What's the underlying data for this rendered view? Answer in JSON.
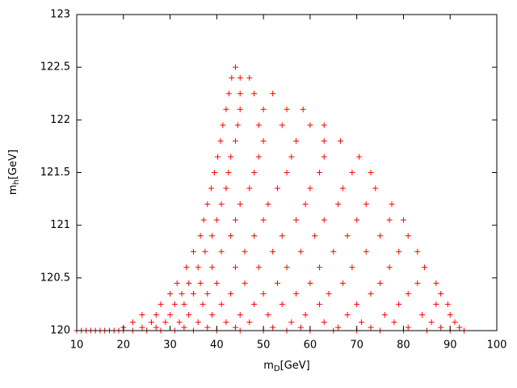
{
  "chart_data": {
    "type": "scatter",
    "color": "#ff0000",
    "x_label": [
      "m",
      "D",
      "[GeV]"
    ],
    "y_label": [
      "m",
      "h",
      "[GeV]"
    ],
    "xlim": [
      10,
      100
    ],
    "xticks": [
      10,
      20,
      30,
      40,
      50,
      60,
      70,
      80,
      90,
      100
    ],
    "ylim": [
      120,
      123
    ],
    "yticks": [
      120,
      120.5,
      121,
      121.5,
      122,
      122.5,
      123
    ],
    "x": [
      10,
      11,
      12,
      13,
      14,
      15,
      16,
      17,
      18,
      19,
      20,
      22,
      25,
      28,
      31,
      35,
      40,
      45,
      50,
      55,
      60,
      65,
      70,
      75,
      80,
      85,
      90,
      93,
      20,
      24,
      27,
      33,
      38,
      44,
      52,
      58,
      66,
      73,
      81,
      88,
      92,
      22,
      26,
      29,
      32,
      36,
      42,
      47,
      56,
      63,
      71,
      78,
      86,
      91,
      24,
      27,
      30,
      34,
      39,
      45,
      51,
      59,
      68,
      76,
      84,
      90,
      28,
      31,
      33,
      37,
      41,
      48,
      54,
      62,
      70,
      79,
      87,
      89.5,
      30,
      32.5,
      35,
      38,
      43,
      50,
      57,
      64,
      73,
      81,
      88,
      31.5,
      34,
      36.5,
      40,
      46,
      53,
      60,
      67,
      75,
      83,
      87,
      33.5,
      36,
      39,
      44,
      49,
      55,
      62,
      69,
      77,
      84.5,
      35,
      37.5,
      41,
      46,
      52,
      58,
      65,
      72,
      79,
      83,
      36.5,
      39,
      43,
      48,
      54,
      61,
      68,
      75,
      81,
      37.2,
      40,
      44,
      50,
      57,
      63,
      70,
      77,
      80,
      38,
      41,
      45,
      51,
      59,
      66,
      72,
      77.5,
      38.8,
      42,
      47,
      53,
      60,
      67,
      74,
      39.5,
      42.5,
      48,
      55,
      62,
      69,
      73,
      40.2,
      43,
      49,
      56,
      63,
      70.5,
      40.8,
      44,
      50,
      57,
      63,
      66.5,
      41.3,
      44.5,
      49,
      54,
      60,
      63,
      42,
      45,
      50,
      55,
      58.5,
      42.6,
      45,
      48,
      52,
      43.2,
      45,
      47,
      44
    ],
    "values": [
      120,
      120,
      120,
      120,
      120,
      120,
      120,
      120,
      120,
      120,
      120,
      120,
      120,
      120,
      120,
      120,
      120,
      120,
      120,
      120,
      120,
      120,
      120,
      120,
      120,
      120,
      120,
      120,
      120.03,
      120.03,
      120.03,
      120.03,
      120.03,
      120.03,
      120.03,
      120.03,
      120.03,
      120.03,
      120.03,
      120.03,
      120.03,
      120.08,
      120.08,
      120.08,
      120.08,
      120.08,
      120.08,
      120.08,
      120.08,
      120.08,
      120.08,
      120.08,
      120.08,
      120.08,
      120.15,
      120.15,
      120.15,
      120.15,
      120.15,
      120.15,
      120.15,
      120.15,
      120.15,
      120.15,
      120.15,
      120.15,
      120.25,
      120.25,
      120.25,
      120.25,
      120.25,
      120.25,
      120.25,
      120.25,
      120.25,
      120.25,
      120.25,
      120.25,
      120.35,
      120.35,
      120.35,
      120.35,
      120.35,
      120.35,
      120.35,
      120.35,
      120.35,
      120.35,
      120.35,
      120.45,
      120.45,
      120.45,
      120.45,
      120.45,
      120.45,
      120.45,
      120.45,
      120.45,
      120.45,
      120.45,
      120.6,
      120.6,
      120.6,
      120.6,
      120.6,
      120.6,
      120.6,
      120.6,
      120.6,
      120.6,
      120.75,
      120.75,
      120.75,
      120.75,
      120.75,
      120.75,
      120.75,
      120.75,
      120.75,
      120.75,
      120.9,
      120.9,
      120.9,
      120.9,
      120.9,
      120.9,
      120.9,
      120.9,
      120.9,
      121.05,
      121.05,
      121.05,
      121.05,
      121.05,
      121.05,
      121.05,
      121.05,
      121.05,
      121.2,
      121.2,
      121.2,
      121.2,
      121.2,
      121.2,
      121.2,
      121.2,
      121.35,
      121.35,
      121.35,
      121.35,
      121.35,
      121.35,
      121.35,
      121.5,
      121.5,
      121.5,
      121.5,
      121.5,
      121.5,
      121.5,
      121.65,
      121.65,
      121.65,
      121.65,
      121.65,
      121.65,
      121.8,
      121.8,
      121.8,
      121.8,
      121.8,
      121.8,
      121.95,
      121.95,
      121.95,
      121.95,
      121.95,
      121.95,
      122.1,
      122.1,
      122.1,
      122.1,
      122.1,
      122.25,
      122.25,
      122.25,
      122.25,
      122.4,
      122.4,
      122.4,
      122.5
    ]
  }
}
